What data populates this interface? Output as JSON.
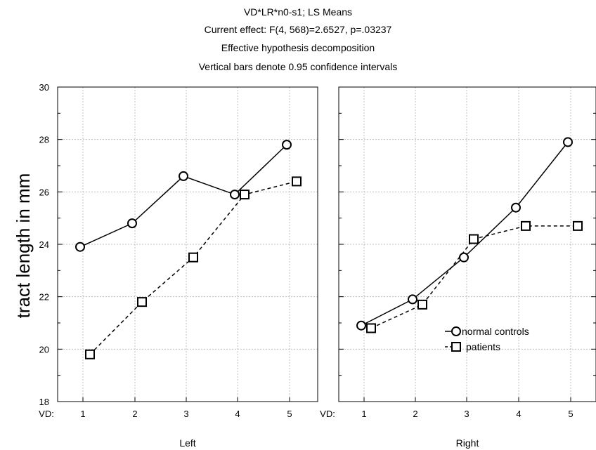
{
  "title_lines": [
    "VD*LR*n0-s1; LS Means",
    "Current effect: F(4, 568)=2.6527, p=.03237",
    "Effective hypothesis decomposition",
    "Vertical bars denote 0.95 confidence intervals"
  ],
  "chart_data": {
    "type": "line",
    "ylabel": "tract length in mm",
    "ylim": [
      18,
      30
    ],
    "y_ticks": [
      "18",
      "20",
      "22",
      "24",
      "26",
      "28",
      "30"
    ],
    "x_prefix": "VD:",
    "categories": [
      "1",
      "2",
      "3",
      "4",
      "5"
    ],
    "grid": true,
    "legend": {
      "placement": "lower-right of Right panel",
      "entries": [
        {
          "label": "normal controls",
          "marker": "circle",
          "line": "solid"
        },
        {
          "label": "patients",
          "marker": "square",
          "line": "dashed"
        }
      ]
    },
    "panels": [
      {
        "label": "Left",
        "series": [
          {
            "name": "normal controls",
            "values": [
              23.9,
              24.8,
              26.6,
              25.9,
              27.8
            ]
          },
          {
            "name": "patients",
            "values": [
              19.8,
              21.8,
              23.5,
              25.9,
              26.4
            ]
          }
        ]
      },
      {
        "label": "Right",
        "series": [
          {
            "name": "normal controls",
            "values": [
              20.9,
              21.9,
              23.5,
              25.4,
              27.9
            ]
          },
          {
            "name": "patients",
            "values": [
              20.8,
              21.7,
              24.2,
              24.7,
              24.7
            ]
          }
        ]
      }
    ]
  },
  "colors": {
    "line": "#000000",
    "grid": "#bfbfbf",
    "marker_fill": "#ffffff"
  }
}
